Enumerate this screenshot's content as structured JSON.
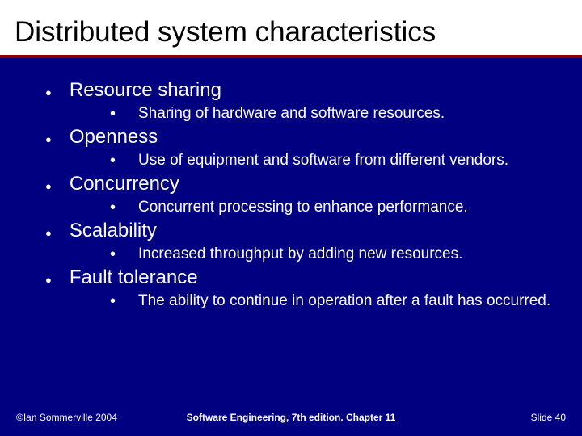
{
  "title": "Distributed system characteristics",
  "items": [
    {
      "label": "Resource sharing",
      "sub": "Sharing of hardware and software resources."
    },
    {
      "label": "Openness",
      "sub": "Use of equipment and software from different vendors."
    },
    {
      "label": "Concurrency",
      "sub": "Concurrent processing to enhance performance."
    },
    {
      "label": "Scalability",
      "sub": "Increased throughput by adding new resources."
    },
    {
      "label": "Fault tolerance",
      "sub": "The ability to continue in operation after a fault has occurred."
    }
  ],
  "footer": {
    "left": "©Ian Sommerville 2004",
    "center": "Software Engineering, 7th edition. Chapter 11",
    "right": "Slide 40"
  },
  "colors": {
    "background": "#000080",
    "title_bg": "#ffffff",
    "title_text": "#000000",
    "rule": "#8b0000",
    "body_text": "#ffffff"
  }
}
